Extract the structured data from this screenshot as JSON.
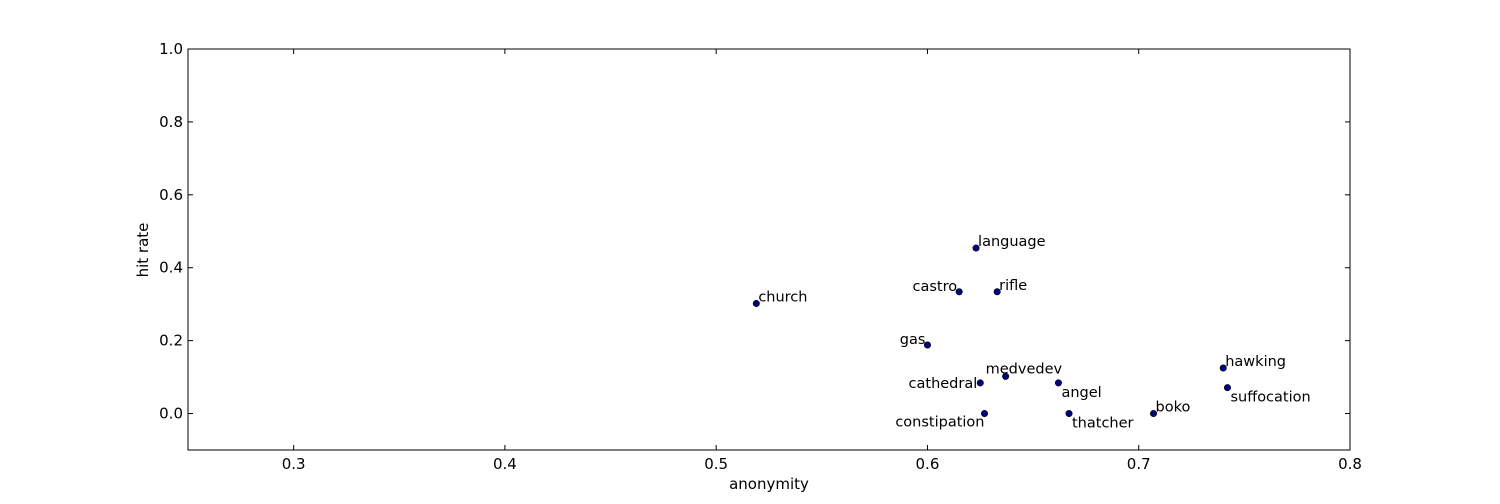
{
  "chart_data": {
    "type": "scatter",
    "title": "",
    "xlabel": "anonymity",
    "ylabel": "hit rate",
    "xlim": [
      0.25,
      0.8
    ],
    "ylim": [
      -0.1,
      1.0
    ],
    "x_ticks": [
      0.3,
      0.4,
      0.5,
      0.6,
      0.7,
      0.8
    ],
    "x_tick_labels": [
      "0.3",
      "0.4",
      "0.5",
      "0.6",
      "0.7",
      "0.8"
    ],
    "y_ticks": [
      0.0,
      0.2,
      0.4,
      0.6,
      0.8,
      1.0
    ],
    "y_tick_labels": [
      "0.0",
      "0.2",
      "0.4",
      "0.6",
      "0.8",
      "1.0"
    ],
    "grid": false,
    "marker_color": "#00007f",
    "points": [
      {
        "label": "church",
        "x": 0.519,
        "y": 0.302,
        "label_side": "right-up"
      },
      {
        "label": "gas",
        "x": 0.6,
        "y": 0.188,
        "label_side": "left-up"
      },
      {
        "label": "castro",
        "x": 0.615,
        "y": 0.334,
        "label_side": "left-up"
      },
      {
        "label": "language",
        "x": 0.623,
        "y": 0.454,
        "label_side": "right-up"
      },
      {
        "label": "cathedral",
        "x": 0.625,
        "y": 0.084,
        "label_side": "left"
      },
      {
        "label": "constipation",
        "x": 0.627,
        "y": 0.0,
        "label_side": "left-down"
      },
      {
        "label": "rifle",
        "x": 0.633,
        "y": 0.334,
        "label_side": "right-up"
      },
      {
        "label": "medvedev",
        "x": 0.637,
        "y": 0.102,
        "label_side": "center-up"
      },
      {
        "label": "angel",
        "x": 0.662,
        "y": 0.084,
        "label_side": "right-down"
      },
      {
        "label": "thatcher",
        "x": 0.667,
        "y": 0.0,
        "label_side": "right-down"
      },
      {
        "label": "boko",
        "x": 0.707,
        "y": 0.0,
        "label_side": "right-up"
      },
      {
        "label": "hawking",
        "x": 0.74,
        "y": 0.125,
        "label_side": "right-up"
      },
      {
        "label": "suffocation",
        "x": 0.742,
        "y": 0.071,
        "label_side": "right-down"
      }
    ]
  }
}
